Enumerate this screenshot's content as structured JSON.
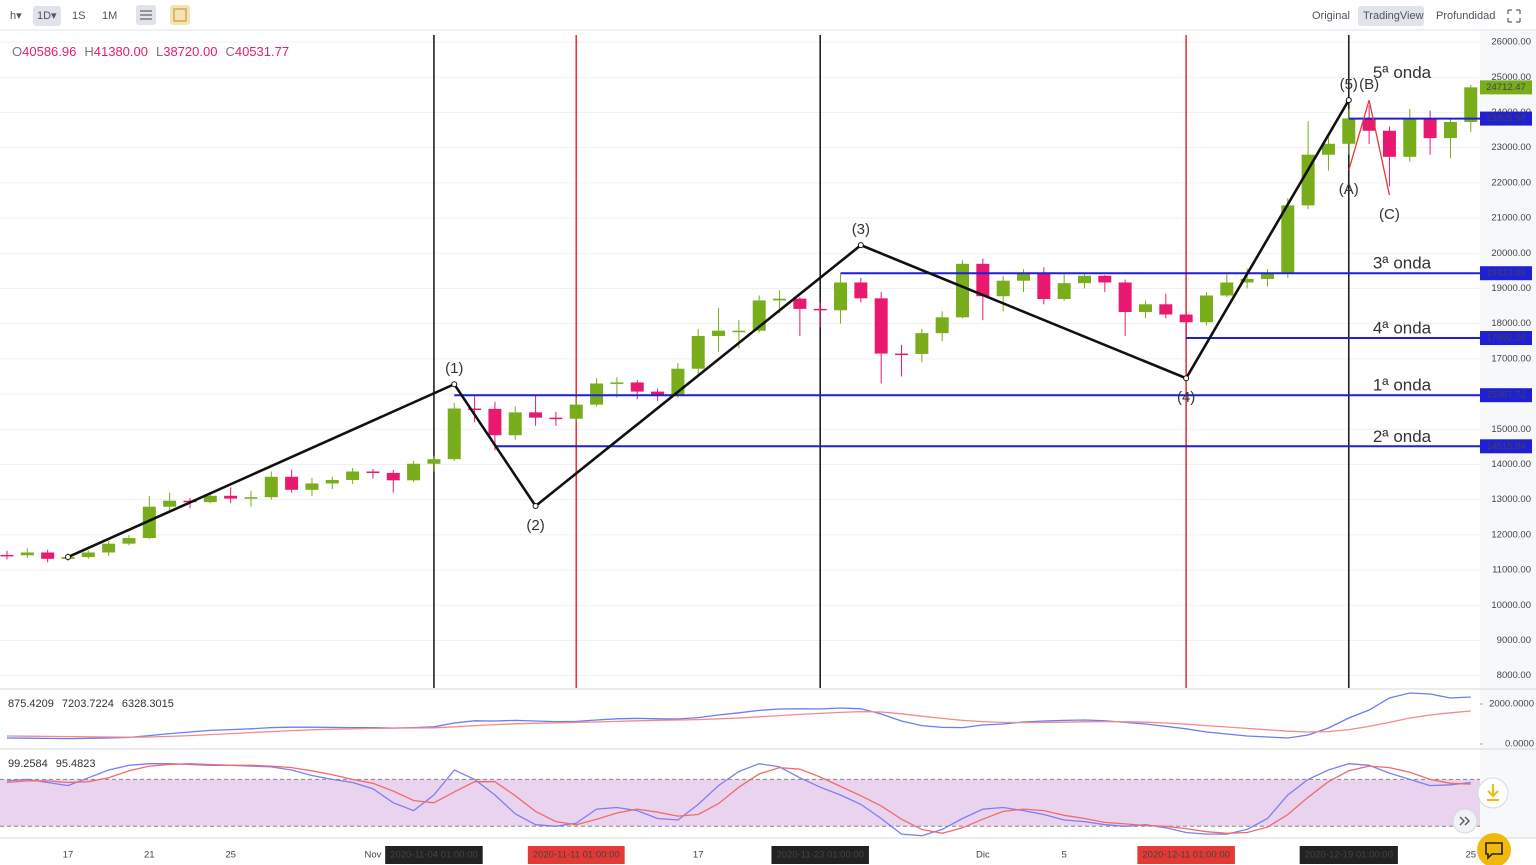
{
  "toolbar": {
    "left": [
      "h▾",
      "1D▾",
      "1S",
      "1M"
    ],
    "right": [
      "Original",
      "TradingView",
      "Profundidad"
    ]
  },
  "ohlc_legend": [
    {
      "key": "O",
      "price": 40586.96
    },
    {
      "key": "H",
      "price": {
        "value": 41380,
        "label": "41380.00"
      }
    },
    {
      "key": "L",
      "price": {
        "value": 38720,
        "label": "38720.00"
      }
    },
    {
      "key": "C",
      "price": 40531.77
    }
  ],
  "chart_data": [
    {
      "type": "candlestick",
      "categories": [
        null,
        null,
        null,
        "17",
        null,
        null,
        null,
        "21",
        null,
        null,
        null,
        "25",
        null,
        null,
        null,
        null,
        null,
        null,
        "Nov",
        null,
        null,
        "2020-11-04 01:00:00",
        null,
        null,
        null,
        null,
        null,
        null,
        "2020-11-11 01:00:00",
        null,
        null,
        null,
        null,
        null,
        "17",
        null,
        null,
        null,
        null,
        null,
        "2020-11-23 01:00:00",
        null,
        null,
        null,
        null,
        null,
        null,
        null,
        "Dic",
        null,
        null,
        null,
        "5",
        null,
        null,
        null,
        null,
        null,
        "2020-12-11 01:00:00",
        null,
        null,
        null,
        null,
        null,
        null,
        null,
        "2020-12-19 01:00:00",
        null,
        null,
        null,
        null,
        null,
        "25"
      ],
      "open": [
        11430,
        11420,
        11500,
        11320,
        11370,
        11500,
        11750,
        11910,
        12800,
        12970,
        12930,
        13110,
        13030,
        13070,
        13650,
        13280,
        13460,
        13560,
        13800,
        13760,
        13550,
        14020,
        14150,
        15590,
        15580,
        14830,
        15480,
        15330,
        15300,
        15700,
        16300,
        16330,
        16070,
        15960,
        16720,
        17650,
        17800,
        17800,
        18660,
        18710,
        18420,
        18380,
        19170,
        18720,
        17150,
        17140,
        17730,
        18180,
        19700,
        18780,
        19220,
        19440,
        18700,
        19150,
        19360,
        19170,
        18330,
        18550,
        18260,
        18040,
        18800,
        19170,
        19270,
        19430,
        21360,
        22800,
        23110,
        23830,
        23480,
        22740,
        23820,
        23270,
        23730
      ],
      "high": [
        11550,
        11620,
        11580,
        11480,
        11560,
        11820,
        12000,
        13100,
        13200,
        13050,
        13220,
        13350,
        13250,
        13800,
        13850,
        13620,
        13650,
        13900,
        13870,
        13850,
        14100,
        14250,
        15750,
        15950,
        15780,
        15650,
        15950,
        15500,
        15900,
        16450,
        16480,
        16400,
        16150,
        16880,
        17850,
        18450,
        18100,
        18800,
        18950,
        18750,
        18600,
        19420,
        19300,
        18900,
        17400,
        17850,
        18350,
        19800,
        19850,
        19350,
        19550,
        19600,
        19400,
        19400,
        19380,
        19250,
        18650,
        18850,
        18300,
        18900,
        19400,
        19570,
        19550,
        21560,
        23750,
        23300,
        24100,
        24200,
        23600,
        24100,
        24050,
        23800,
        24780
      ],
      "low": [
        11300,
        11350,
        11220,
        11250,
        11320,
        11400,
        11700,
        11880,
        12650,
        12750,
        12900,
        12900,
        12800,
        13000,
        13200,
        13100,
        13300,
        13450,
        13600,
        13200,
        13500,
        13800,
        14100,
        15200,
        14400,
        14700,
        15100,
        15100,
        15200,
        15650,
        15900,
        15850,
        15800,
        15900,
        16550,
        17200,
        17300,
        17750,
        18300,
        17650,
        17900,
        18000,
        18600,
        16300,
        16500,
        16900,
        17500,
        18150,
        18100,
        18350,
        18900,
        18550,
        18650,
        19000,
        18900,
        17650,
        18150,
        18150,
        17600,
        17950,
        18750,
        19000,
        19050,
        19300,
        21250,
        22350,
        22800,
        23100,
        21900,
        22600,
        22800,
        22700,
        23450
      ],
      "close": [
        11420,
        11500,
        11320,
        11370,
        11500,
        11750,
        11910,
        12800,
        12970,
        12930,
        13110,
        13030,
        13070,
        13650,
        13280,
        13460,
        13560,
        13800,
        13760,
        13550,
        14020,
        14150,
        15590,
        15580,
        14830,
        15480,
        15330,
        15300,
        15700,
        16300,
        16330,
        16070,
        15960,
        16720,
        17650,
        17800,
        17800,
        18660,
        18710,
        18420,
        18380,
        19170,
        18720,
        17150,
        17140,
        17730,
        18180,
        19700,
        18780,
        19220,
        19440,
        18700,
        19150,
        19360,
        19170,
        18330,
        18550,
        18260,
        18040,
        18800,
        19170,
        19270,
        19430,
        21360,
        22800,
        23110,
        23830,
        23480,
        22740,
        23820,
        23270,
        23730,
        24712.47
      ],
      "up_color": "#79ad1c",
      "down_color": "#e8196f",
      "ylim": [
        7650,
        26200
      ],
      "yticks": [
        {
          "value": 8000,
          "label": "8000.00"
        },
        {
          "value": 9000,
          "label": "9000.00"
        },
        {
          "value": 10000,
          "label": "10000.00"
        },
        {
          "value": 11000,
          "label": "11000.00"
        },
        {
          "value": 12000,
          "label": "12000.00"
        },
        {
          "value": 13000,
          "label": "13000.00"
        },
        {
          "value": 14000,
          "label": "14000.00"
        },
        {
          "value": 15000,
          "label": "15000.00"
        },
        {
          "value": 16000,
          "label": "16000.00"
        },
        {
          "value": 17000,
          "label": "17000.00"
        },
        {
          "value": 18000,
          "label": "18000.00"
        },
        {
          "value": 19000,
          "label": "19000.00"
        },
        {
          "value": 20000,
          "label": "20000.00"
        },
        {
          "value": 21000,
          "label": "21000.00"
        },
        {
          "value": 22000,
          "label": "22000.00"
        },
        {
          "value": 23000,
          "label": "23000.00"
        },
        {
          "value": 24000,
          "label": "24000.00"
        },
        {
          "value": 25000,
          "label": "25000.00"
        },
        {
          "value": 26000,
          "label": "26000.00"
        }
      ],
      "grid": true,
      "last_price": 24712.47,
      "vlines": [
        {
          "date": "2020-11-04 01:00:00",
          "color": "#222222"
        },
        {
          "date": "2020-11-11 01:00:00",
          "color": "#e53935"
        },
        {
          "date": "2020-11-23 01:00:00",
          "color": "#222222"
        },
        {
          "date": "2020-12-11 01:00:00",
          "color": "#e53935"
        },
        {
          "date": "2020-12-19 01:00:00",
          "color": "#222222"
        }
      ],
      "levels": [
        {
          "name": "1ª onda",
          "price": 15967.72
        },
        {
          "name": "2ª onda",
          "price": 14515.94
        },
        {
          "name": "3ª onda",
          "price": 19433.06
        },
        {
          "name": "4ª onda",
          "price": {
            "value": 17592.1,
            "label": "17592.10"
          }
        },
        {
          "name": "5ª onda",
          "price": 23825.58
        }
      ],
      "level_color": "#1f1fd6",
      "impulse": {
        "labels": [
          null,
          "(1)",
          "(2)",
          "(3)",
          "(4)",
          "(5)"
        ],
        "x_index": [
          3,
          22,
          26,
          42,
          58,
          66
        ],
        "prices": [
          11370,
          16280,
          12820,
          20230,
          16450,
          24350
        ],
        "color": "#111111"
      },
      "correction": {
        "labels": [
          "(A)",
          "(B)",
          "(C)"
        ],
        "x_index": [
          66,
          67,
          68
        ],
        "prices": [
          22360,
          24350,
          21650
        ],
        "color": "#e53935"
      }
    },
    {
      "type": "line",
      "legend_values": [
        {
          "value": 875.4209,
          "color": "#e53935"
        },
        {
          "value": 7203.7224,
          "color": "#3a4bd8"
        },
        {
          "value": 6328.3015,
          "color": "#e53935"
        }
      ],
      "ylim": [
        -200,
        2600
      ],
      "yticks": [
        {
          "value": 0,
          "label": "0.0000"
        },
        {
          "value": 2000,
          "label": "2000.0000"
        }
      ],
      "series": [
        {
          "color": "#6b7cf5",
          "values": [
            300,
            290,
            280,
            270,
            280,
            300,
            330,
            420,
            520,
            600,
            680,
            720,
            760,
            820,
            840,
            840,
            830,
            820,
            820,
            800,
            820,
            860,
            1050,
            1160,
            1150,
            1180,
            1150,
            1120,
            1130,
            1200,
            1260,
            1280,
            1260,
            1250,
            1320,
            1450,
            1560,
            1680,
            1750,
            1760,
            1750,
            1800,
            1760,
            1500,
            1150,
            920,
            830,
            820,
            950,
            1000,
            1100,
            1150,
            1180,
            1200,
            1160,
            1080,
            1000,
            880,
            760,
            600,
            500,
            400,
            350,
            300,
            450,
            800,
            1300,
            1700,
            2300,
            2550,
            2500,
            2300,
            2350
          ]
        },
        {
          "color": "#f28b8b",
          "values": [
            400,
            390,
            380,
            370,
            360,
            350,
            340,
            350,
            380,
            420,
            470,
            520,
            570,
            620,
            670,
            710,
            740,
            760,
            780,
            790,
            800,
            810,
            860,
            920,
            970,
            1010,
            1040,
            1060,
            1080,
            1100,
            1130,
            1160,
            1180,
            1200,
            1220,
            1260,
            1300,
            1360,
            1420,
            1480,
            1530,
            1580,
            1620,
            1600,
            1510,
            1390,
            1280,
            1180,
            1120,
            1080,
            1070,
            1080,
            1090,
            1110,
            1120,
            1110,
            1090,
            1050,
            990,
            920,
            850,
            780,
            710,
            640,
            600,
            620,
            720,
            880,
            1080,
            1300,
            1450,
            1560,
            1650
          ]
        }
      ]
    },
    {
      "type": "line",
      "legend_values": [
        {
          "value": 99.2584,
          "color": "#3a4bd8"
        },
        {
          "value": 95.4823,
          "color": "#e53935"
        }
      ],
      "ylim": [
        5,
        115
      ],
      "band": [
        20,
        80
      ],
      "band_color": "#e2c4e8",
      "series": [
        {
          "color": "#7e7ef0",
          "values": [
            78,
            80,
            76,
            72,
            82,
            92,
            98,
            100,
            100,
            99,
            98,
            98,
            97,
            96,
            92,
            85,
            80,
            76,
            68,
            50,
            40,
            60,
            92,
            80,
            60,
            36,
            22,
            20,
            24,
            42,
            44,
            40,
            30,
            28,
            48,
            72,
            90,
            100,
            96,
            82,
            70,
            60,
            48,
            30,
            10,
            8,
            16,
            30,
            42,
            44,
            40,
            35,
            28,
            26,
            22,
            20,
            22,
            18,
            12,
            10,
            10,
            16,
            30,
            60,
            80,
            92,
            100,
            98,
            88,
            80,
            72,
            73,
            76
          ]
        },
        {
          "color": "#f06c6c",
          "values": [
            76,
            78,
            78,
            76,
            77,
            82,
            91,
            97,
            99,
            100,
            99,
            98,
            98,
            97,
            95,
            91,
            86,
            80,
            75,
            65,
            53,
            50,
            64,
            77,
            77,
            59,
            39,
            26,
            22,
            29,
            37,
            42,
            38,
            33,
            35,
            49,
            70,
            87,
            95,
            93,
            83,
            71,
            59,
            46,
            29,
            16,
            11,
            18,
            29,
            39,
            42,
            40,
            34,
            30,
            25,
            23,
            21,
            20,
            17,
            13,
            11,
            12,
            19,
            35,
            57,
            77,
            91,
            97,
            95,
            89,
            80,
            75,
            74
          ]
        }
      ]
    }
  ]
}
